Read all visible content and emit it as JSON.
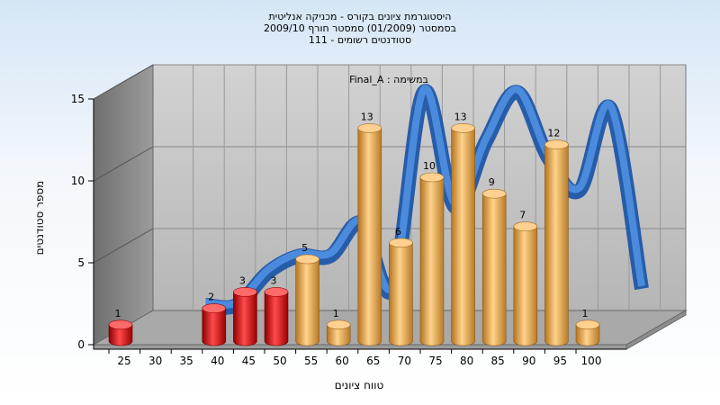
{
  "chart_data": {
    "type": "bar",
    "title_lines": [
      "היסטוגרמת ציונים בקורס - מכניקה אנליטית",
      "בסמסטר  (01/2009)  סמסטר חורף 2009/10",
      "סטודנטים רשומים - 111"
    ],
    "subtitle": "במשימה : Final_A",
    "xlabel": "טווח ציונים",
    "ylabel": "מספר סטודנטים",
    "categories": [
      "25",
      "30",
      "35",
      "40",
      "45",
      "50",
      "55",
      "60",
      "65",
      "70",
      "75",
      "80",
      "85",
      "90",
      "95",
      "100"
    ],
    "values": [
      1,
      0,
      0,
      2,
      3,
      3,
      5,
      1,
      13,
      6,
      10,
      13,
      9,
      7,
      12,
      1
    ],
    "yticks": [
      0,
      5,
      10,
      15
    ],
    "ylim": [
      0,
      15
    ],
    "fail_threshold": 55,
    "colors": {
      "fail": "#e01818",
      "pass": "#f0b050",
      "trend": "#2f6fc8",
      "plot_back": "#c0c0c0",
      "side_wall": "#8a8a8a"
    }
  }
}
